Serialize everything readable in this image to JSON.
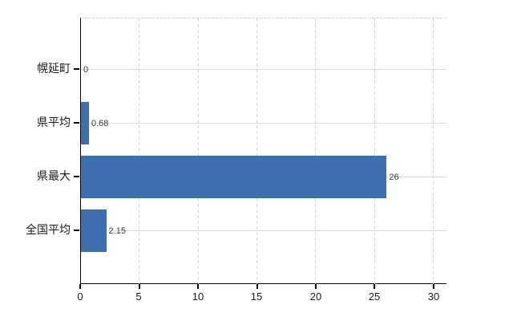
{
  "chart_data": {
    "type": "bar",
    "orientation": "horizontal",
    "title": "",
    "xlabel": "",
    "ylabel": "",
    "categories": [
      "幌延町",
      "県平均",
      "県最大",
      "全国平均"
    ],
    "values": [
      0,
      0.68,
      26,
      2.15
    ],
    "value_labels": [
      "0",
      "0.68",
      "26",
      "2.15"
    ],
    "x_ticks": [
      "0",
      "5",
      "10",
      "15",
      "20",
      "25",
      "30"
    ],
    "x_tick_values": [
      0,
      5,
      10,
      15,
      20,
      25,
      30
    ],
    "xlim": [
      0,
      31.1
    ],
    "grid": true,
    "legend": "none",
    "bar_color": "#3d6eae",
    "axis_color": "#000000",
    "hgrid_color": "#d7ddd3",
    "vgrid_color": "#d8d2da",
    "label_color": "#1a1a1a",
    "value_label_color": "#3a3a3a",
    "background": "#ffffff"
  }
}
